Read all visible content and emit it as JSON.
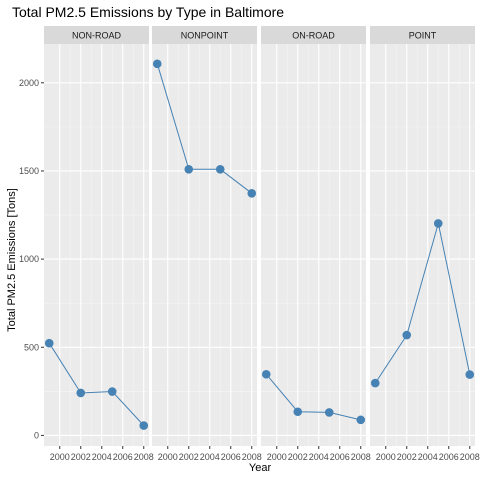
{
  "colors": {
    "panel_bg": "#ebebeb",
    "strip_bg": "#d9d9d9",
    "grid_major": "#ffffff",
    "grid_minor": "#f5f5f5",
    "series": "#4682b4",
    "tick": "#333333"
  },
  "chart_data": {
    "type": "line",
    "title": "Total PM2.5 Emissions by Type in Baltimore",
    "xlabel": "Year",
    "ylabel": "Total PM2.5 Emissions [Tons]",
    "x_ticks": [
      "2000",
      "2002",
      "2004",
      "2006",
      "2008"
    ],
    "y_ticks": [
      "0",
      "500",
      "1000",
      "1500",
      "2000"
    ],
    "xlim": [
      1998.5,
      2008.5
    ],
    "ylim": [
      -60,
      2220
    ],
    "grid": true,
    "markers": true,
    "facets": [
      {
        "name": "NON-ROAD",
        "x": [
          1999,
          2002,
          2005,
          2008
        ],
        "y": [
          522.94,
          240.85,
          248.93,
          55.82
        ]
      },
      {
        "name": "NONPOINT",
        "x": [
          1999,
          2002,
          2005,
          2008
        ],
        "y": [
          2107.63,
          1509.5,
          1509.5,
          1373.21
        ]
      },
      {
        "name": "ON-ROAD",
        "x": [
          1999,
          2002,
          2005,
          2008
        ],
        "y": [
          346.82,
          134.31,
          130.43,
          88.28
        ]
      },
      {
        "name": "POINT",
        "x": [
          1999,
          2002,
          2005,
          2008
        ],
        "y": [
          296.8,
          569.26,
          1202.49,
          344.98
        ]
      }
    ]
  }
}
